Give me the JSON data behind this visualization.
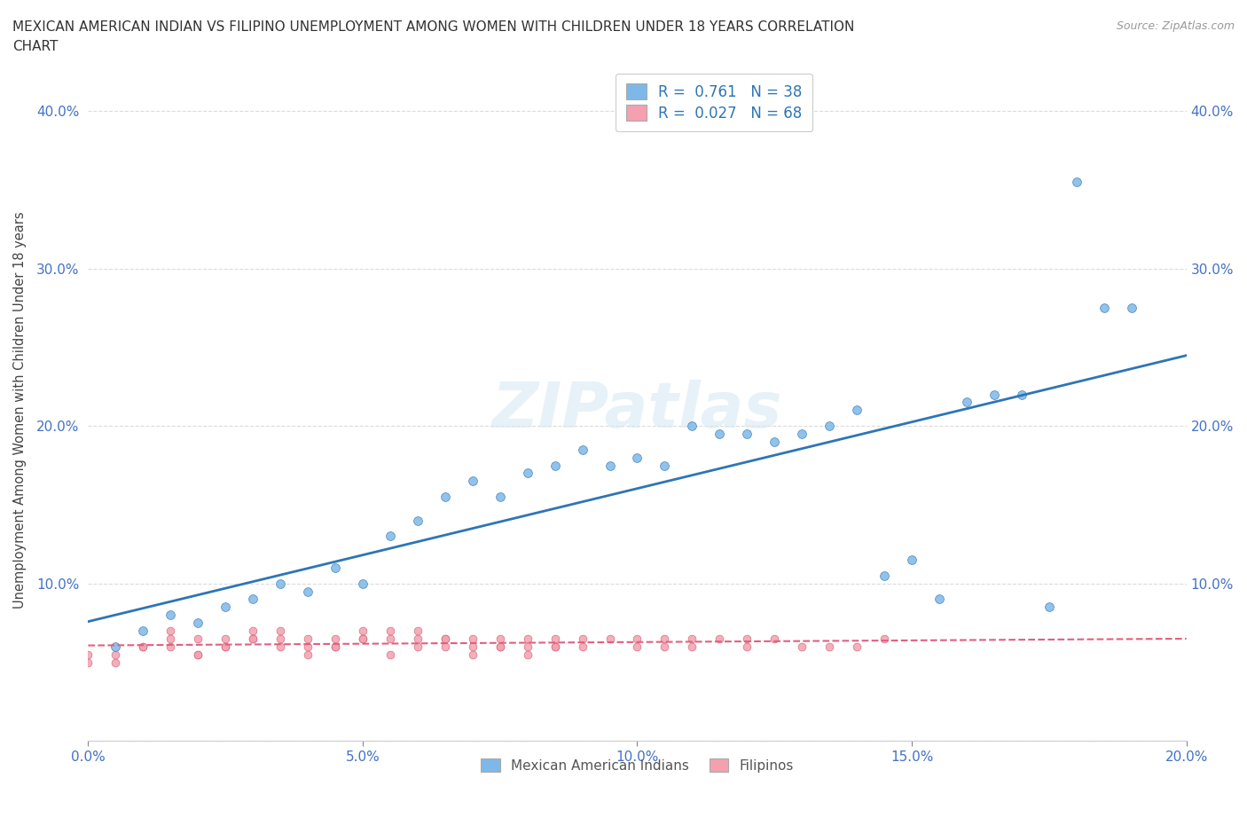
{
  "title": "MEXICAN AMERICAN INDIAN VS FILIPINO UNEMPLOYMENT AMONG WOMEN WITH CHILDREN UNDER 18 YEARS CORRELATION\nCHART",
  "source": "Source: ZipAtlas.com",
  "ylabel": "Unemployment Among Women with Children Under 18 years",
  "xlim": [
    0.0,
    0.2
  ],
  "ylim": [
    0.0,
    0.42
  ],
  "xticks": [
    0.0,
    0.05,
    0.1,
    0.15,
    0.2
  ],
  "xticklabels": [
    "0.0%",
    "5.0%",
    "10.0%",
    "15.0%",
    "20.0%"
  ],
  "yticks": [
    0.0,
    0.1,
    0.2,
    0.3,
    0.4
  ],
  "yticklabels": [
    "",
    "10.0%",
    "20.0%",
    "30.0%",
    "40.0%"
  ],
  "background_color": "#ffffff",
  "watermark": "ZIPatlas",
  "legend_R1": "0.761",
  "legend_N1": 38,
  "legend_R2": "0.027",
  "legend_N2": 68,
  "color_mai": "#7EB8E8",
  "color_fil": "#F4A0B0",
  "color_mai_line": "#2E75B6",
  "color_fil_line": "#E06080",
  "color_mai_dark": "#4472C4",
  "color_fil_dark": "#D06070",
  "mai_x": [
    0.005,
    0.01,
    0.015,
    0.02,
    0.025,
    0.03,
    0.035,
    0.04,
    0.045,
    0.05,
    0.055,
    0.06,
    0.065,
    0.07,
    0.075,
    0.08,
    0.085,
    0.09,
    0.095,
    0.1,
    0.105,
    0.11,
    0.115,
    0.12,
    0.125,
    0.13,
    0.135,
    0.14,
    0.145,
    0.15,
    0.155,
    0.16,
    0.165,
    0.17,
    0.175,
    0.18,
    0.185,
    0.19
  ],
  "mai_y": [
    0.06,
    0.07,
    0.08,
    0.075,
    0.085,
    0.09,
    0.1,
    0.095,
    0.11,
    0.1,
    0.13,
    0.14,
    0.155,
    0.165,
    0.155,
    0.17,
    0.175,
    0.185,
    0.175,
    0.18,
    0.175,
    0.2,
    0.195,
    0.195,
    0.19,
    0.195,
    0.2,
    0.21,
    0.105,
    0.115,
    0.09,
    0.215,
    0.22,
    0.22,
    0.085,
    0.355,
    0.275,
    0.275
  ],
  "fil_x": [
    0.0,
    0.005,
    0.01,
    0.015,
    0.015,
    0.02,
    0.02,
    0.025,
    0.025,
    0.03,
    0.03,
    0.035,
    0.035,
    0.04,
    0.04,
    0.045,
    0.045,
    0.05,
    0.05,
    0.055,
    0.055,
    0.06,
    0.06,
    0.065,
    0.065,
    0.07,
    0.07,
    0.075,
    0.075,
    0.08,
    0.08,
    0.085,
    0.085,
    0.09,
    0.09,
    0.095,
    0.1,
    0.1,
    0.105,
    0.105,
    0.11,
    0.11,
    0.115,
    0.12,
    0.12,
    0.125,
    0.13,
    0.135,
    0.14,
    0.145,
    0.0,
    0.005,
    0.01,
    0.015,
    0.02,
    0.025,
    0.03,
    0.035,
    0.04,
    0.045,
    0.05,
    0.055,
    0.06,
    0.065,
    0.07,
    0.075,
    0.08,
    0.085
  ],
  "fil_y": [
    0.055,
    0.05,
    0.06,
    0.06,
    0.07,
    0.055,
    0.065,
    0.06,
    0.065,
    0.065,
    0.07,
    0.065,
    0.07,
    0.06,
    0.065,
    0.06,
    0.065,
    0.065,
    0.07,
    0.065,
    0.07,
    0.065,
    0.07,
    0.065,
    0.06,
    0.065,
    0.06,
    0.065,
    0.06,
    0.065,
    0.06,
    0.065,
    0.06,
    0.065,
    0.06,
    0.065,
    0.065,
    0.06,
    0.065,
    0.06,
    0.065,
    0.06,
    0.065,
    0.065,
    0.06,
    0.065,
    0.06,
    0.06,
    0.06,
    0.065,
    0.05,
    0.055,
    0.06,
    0.065,
    0.055,
    0.06,
    0.065,
    0.06,
    0.055,
    0.06,
    0.065,
    0.055,
    0.06,
    0.065,
    0.055,
    0.06,
    0.055,
    0.06
  ],
  "grid_color": "#CCCCCC",
  "tick_label_color": "#4472C4"
}
